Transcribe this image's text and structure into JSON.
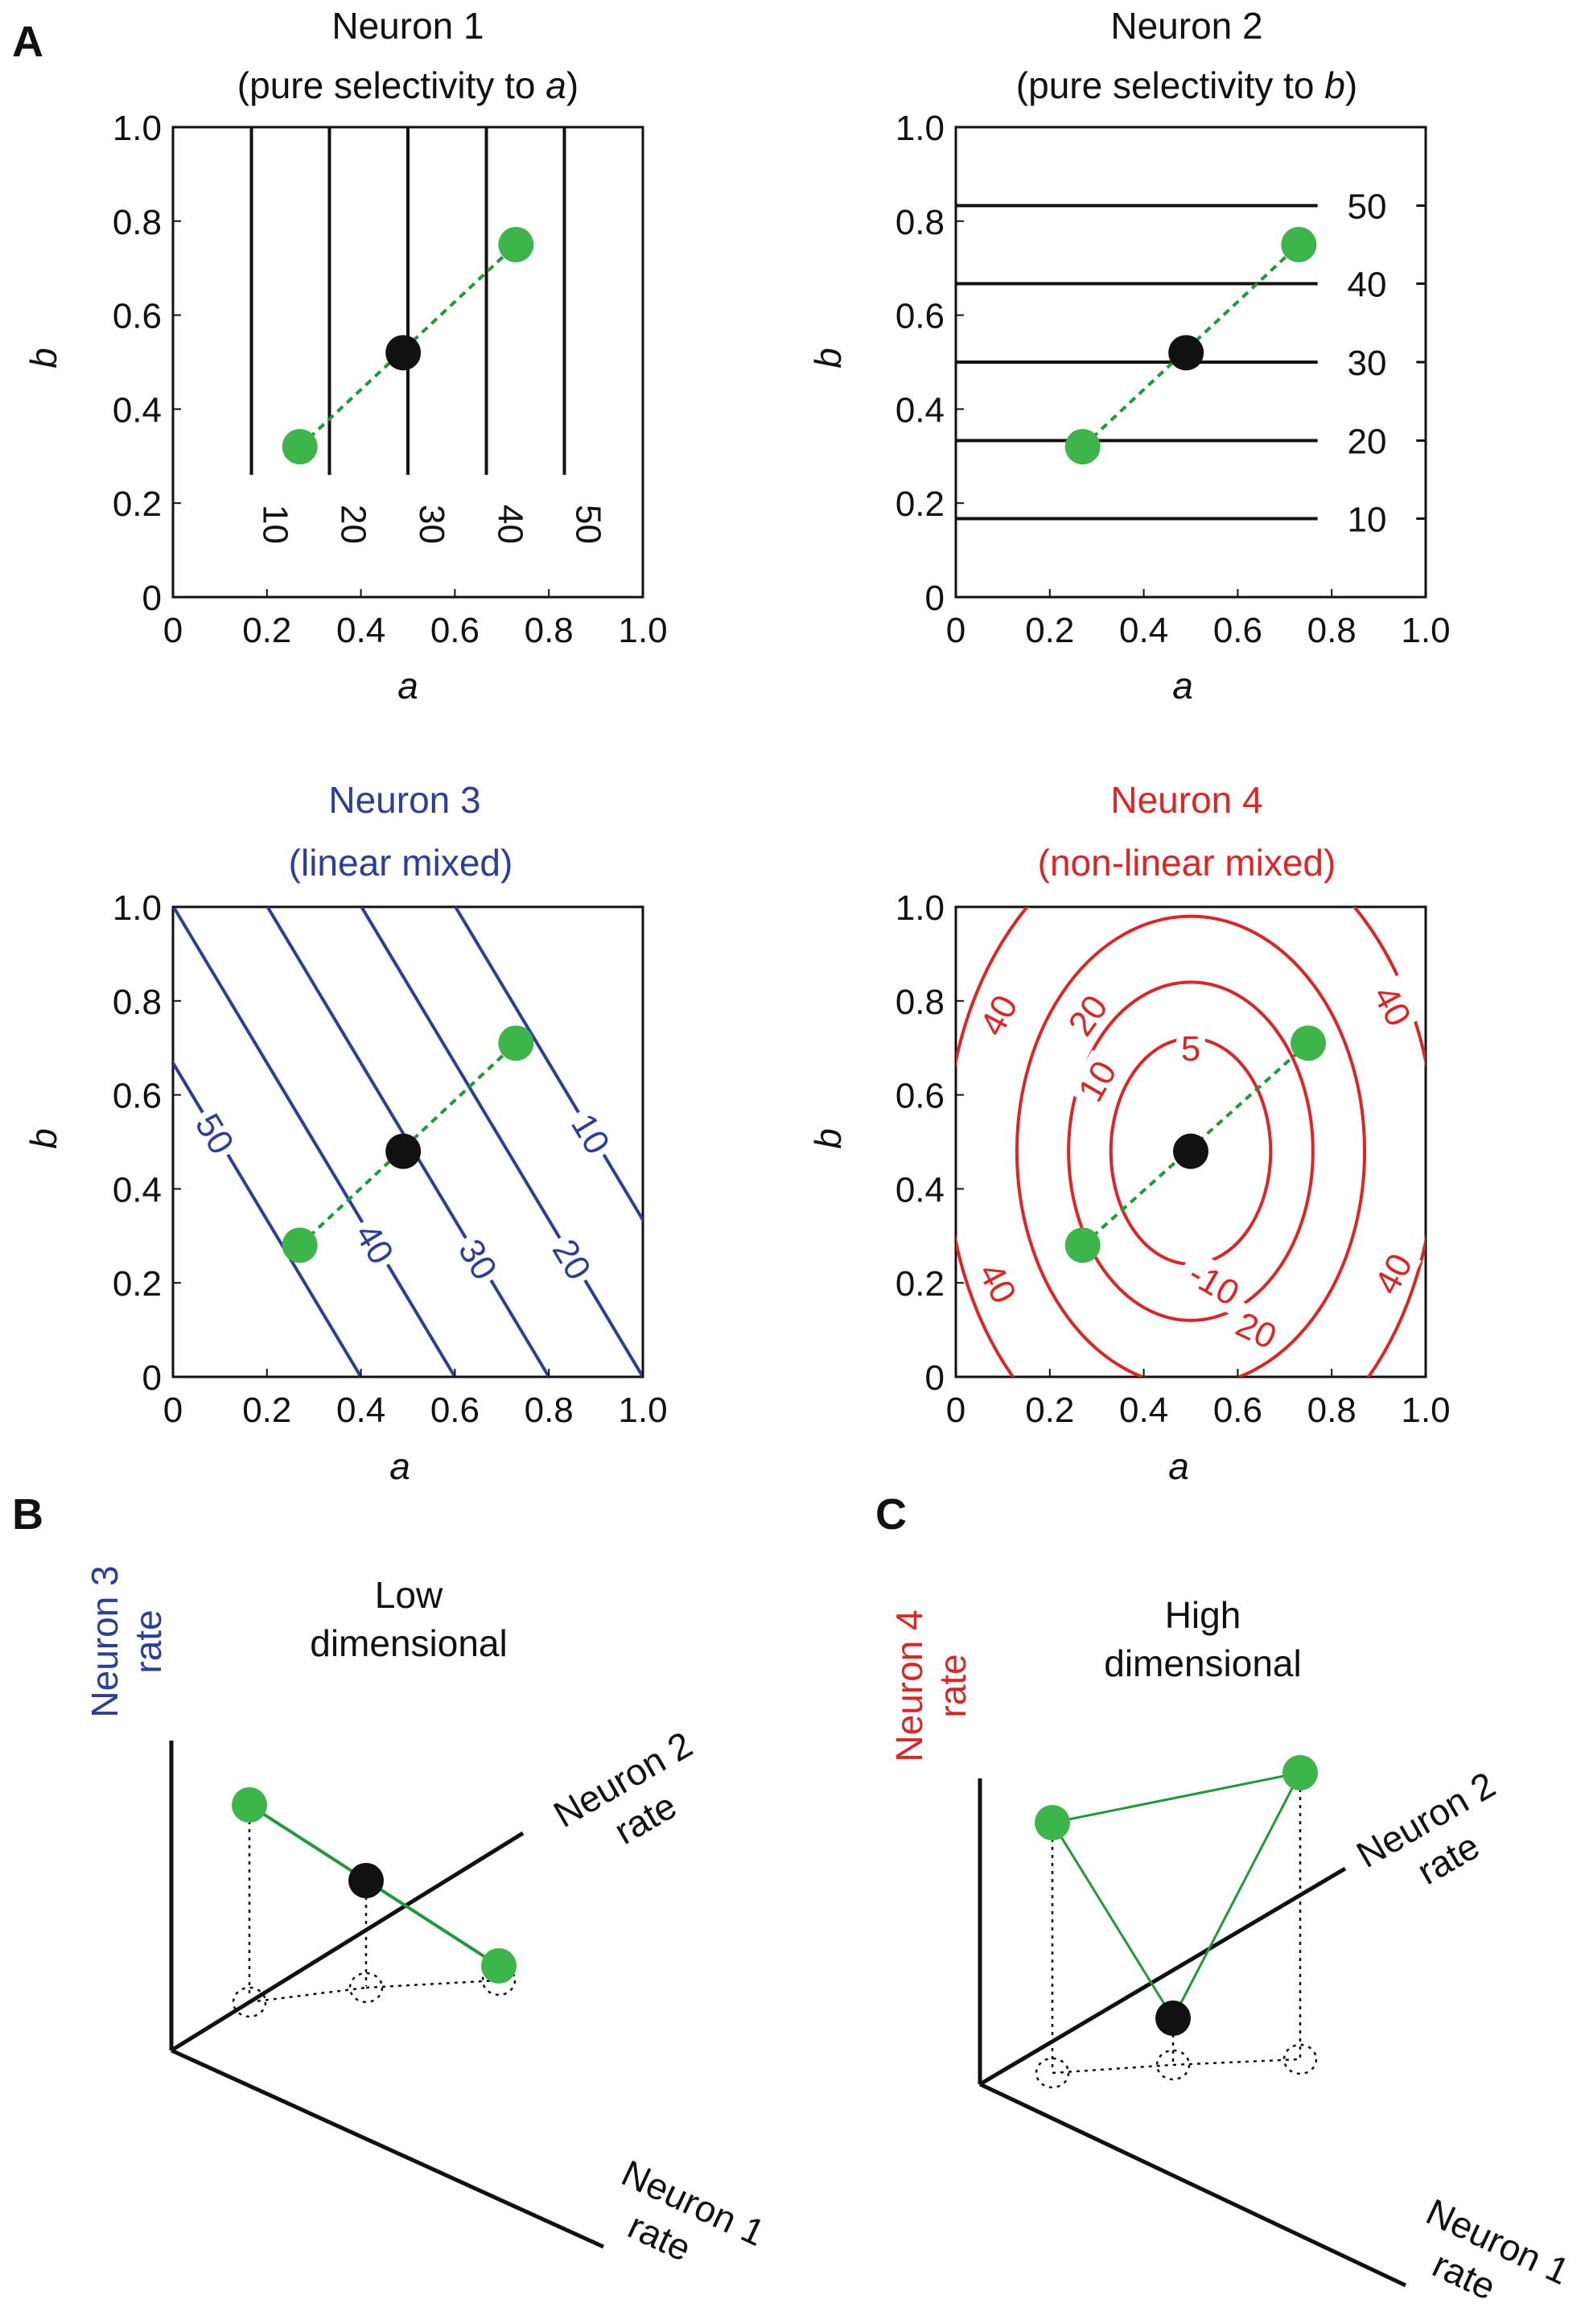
{
  "panel_labels": {
    "A": "A",
    "B": "B",
    "C": "C"
  },
  "colors": {
    "black": "#111111",
    "green": "#3db54a",
    "green_line": "#1e9a3a",
    "blue": "#2a3f9a",
    "red": "#e02424"
  },
  "chart_data": [
    {
      "type": "contour",
      "title": "Neuron 1",
      "subtitle_text": "(pure selectivity to ",
      "subtitle_var": "a",
      "subtitle_close": ")",
      "xlabel": "a",
      "ylabel": "b",
      "xlim": [
        0,
        1
      ],
      "ylim": [
        0,
        1
      ],
      "ticks": [
        0,
        0.2,
        0.4,
        0.6,
        0.8,
        1.0
      ],
      "tick_labels": [
        "0",
        "0.2",
        "0.4",
        "0.6",
        "0.8",
        "1.0"
      ],
      "contour_kind": "vertical",
      "contours": [
        {
          "value": "10",
          "a": 0.167
        },
        {
          "value": "20",
          "a": 0.333
        },
        {
          "value": "30",
          "a": 0.5
        },
        {
          "value": "40",
          "a": 0.667
        },
        {
          "value": "50",
          "a": 0.833
        }
      ],
      "points": {
        "green": [
          [
            0.27,
            0.32
          ],
          [
            0.73,
            0.75
          ]
        ],
        "black": [
          0.49,
          0.52
        ]
      }
    },
    {
      "type": "contour",
      "title": "Neuron 2",
      "subtitle_text": "(pure selectivity to ",
      "subtitle_var": "b",
      "subtitle_close": ")",
      "xlabel": "a",
      "ylabel": "b",
      "xlim": [
        0,
        1
      ],
      "ylim": [
        0,
        1
      ],
      "ticks": [
        0,
        0.2,
        0.4,
        0.6,
        0.8,
        1.0
      ],
      "tick_labels": [
        "0",
        "0.2",
        "0.4",
        "0.6",
        "0.8",
        "1.0"
      ],
      "contour_kind": "horizontal",
      "contours": [
        {
          "value": "10",
          "b": 0.167
        },
        {
          "value": "20",
          "b": 0.333
        },
        {
          "value": "30",
          "b": 0.5
        },
        {
          "value": "40",
          "b": 0.667
        },
        {
          "value": "50",
          "b": 0.833
        }
      ],
      "points": {
        "green": [
          [
            0.27,
            0.32
          ],
          [
            0.73,
            0.75
          ]
        ],
        "black": [
          0.49,
          0.52
        ]
      }
    },
    {
      "type": "contour",
      "title": "Neuron 3",
      "subtitle_text": "(linear mixed)",
      "xlabel": "a",
      "ylabel": "b",
      "xlim": [
        0,
        1
      ],
      "ylim": [
        0,
        1
      ],
      "ticks": [
        0,
        0.2,
        0.4,
        0.6,
        0.8,
        1.0
      ],
      "tick_labels": [
        "0",
        "0.2",
        "0.4",
        "0.6",
        "0.8",
        "1.0"
      ],
      "contour_kind": "diagonal",
      "contours": [
        {
          "value": "50",
          "a_at_b0": 0.4
        },
        {
          "value": "40",
          "a_at_b0": 0.6
        },
        {
          "value": "30",
          "a_at_b0": 0.8
        },
        {
          "value": "20",
          "a_at_b0": 1.0
        },
        {
          "value": "10",
          "a_at_b0": 1.2
        }
      ],
      "contour_slope_b_per_a": -1.67,
      "points": {
        "green": [
          [
            0.27,
            0.28
          ],
          [
            0.73,
            0.71
          ]
        ],
        "black": [
          0.49,
          0.48
        ]
      }
    },
    {
      "type": "contour",
      "title": "Neuron 4",
      "subtitle_text": "(non-linear mixed)",
      "xlabel": "a",
      "ylabel": "b",
      "xlim": [
        0,
        1
      ],
      "ylim": [
        0,
        1
      ],
      "ticks": [
        0,
        0.2,
        0.4,
        0.6,
        0.8,
        1.0
      ],
      "tick_labels": [
        "0",
        "0.2",
        "0.4",
        "0.6",
        "0.8",
        "1.0"
      ],
      "contour_kind": "elliptic",
      "center": [
        0.5,
        0.48
      ],
      "ellipses": [
        {
          "rx": 0.17,
          "ry": 0.24
        },
        {
          "rx": 0.26,
          "ry": 0.36
        },
        {
          "rx": 0.37,
          "ry": 0.5
        },
        {
          "rx": 0.52,
          "ry": 0.7
        }
      ],
      "contour_labels": [
        "5",
        "10",
        "-10",
        "20",
        "20",
        "40",
        "40",
        "40",
        "40"
      ],
      "points": {
        "green": [
          [
            0.27,
            0.28
          ],
          [
            0.75,
            0.71
          ]
        ],
        "black": [
          0.5,
          0.48
        ]
      }
    }
  ],
  "panel_b": {
    "title_line1": "Low",
    "title_line2": "dimensional",
    "vertical_axis_line1": "Neuron 3",
    "vertical_axis_line2": "rate",
    "axis2_line1": "Neuron 2",
    "axis2_line2": "rate",
    "axis1_line1": "Neuron 1",
    "axis1_line2": "rate"
  },
  "panel_c": {
    "title_line1": "High",
    "title_line2": "dimensional",
    "vertical_axis_line1": "Neuron 4",
    "vertical_axis_line2": "rate",
    "axis2_line1": "Neuron 2",
    "axis2_line2": "rate",
    "axis1_line1": "Neuron 1",
    "axis1_line2": "rate"
  }
}
